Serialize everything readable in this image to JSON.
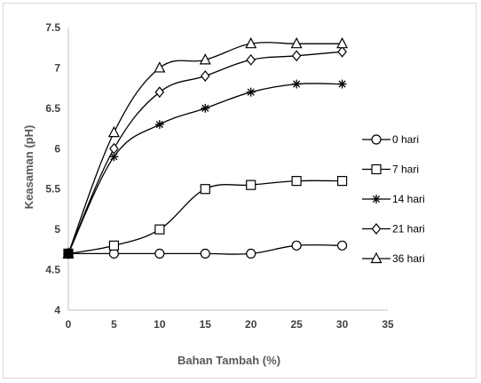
{
  "chart_data": {
    "type": "line",
    "xlabel": "Bahan Tambah (%)",
    "ylabel": "Keasaman (pH)",
    "xlim": [
      0,
      35
    ],
    "ylim": [
      4,
      7.5
    ],
    "x_ticks": [
      0,
      5,
      10,
      15,
      20,
      25,
      30,
      35
    ],
    "y_ticks": [
      4,
      4.5,
      5,
      5.5,
      6,
      6.5,
      7,
      7.5
    ],
    "y_tick_labels": [
      "4",
      "4.5",
      "5",
      "5.5",
      "6",
      "6.5",
      "7",
      "7.5"
    ],
    "x": [
      0,
      5,
      10,
      15,
      20,
      25,
      30
    ],
    "grid": false,
    "legend_position": "right",
    "series": [
      {
        "name": "0 hari",
        "marker": "circle",
        "values": [
          4.7,
          4.7,
          4.7,
          4.7,
          4.7,
          4.8,
          4.8
        ]
      },
      {
        "name": "7 hari",
        "marker": "square",
        "values": [
          4.7,
          4.8,
          5.0,
          5.5,
          5.55,
          5.6,
          5.6
        ]
      },
      {
        "name": "14 hari",
        "marker": "asterisk",
        "values": [
          4.7,
          5.9,
          6.3,
          6.5,
          6.7,
          6.8,
          6.8
        ]
      },
      {
        "name": "21 hari",
        "marker": "diamond",
        "values": [
          4.7,
          6.0,
          6.7,
          6.9,
          7.1,
          7.15,
          7.2
        ]
      },
      {
        "name": "36 hari",
        "marker": "triangle",
        "values": [
          4.7,
          6.2,
          7.0,
          7.1,
          7.3,
          7.3,
          7.3
        ]
      }
    ]
  }
}
